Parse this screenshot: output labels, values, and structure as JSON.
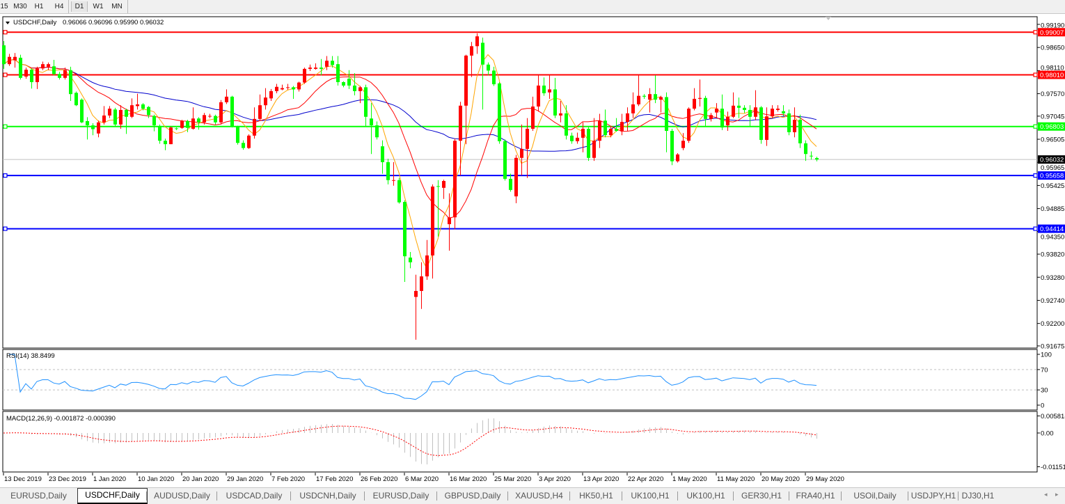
{
  "toolbar": {
    "timeframes": [
      "15",
      "M30",
      "H1",
      "H4",
      "D1",
      "W1",
      "MN"
    ],
    "active": "D1"
  },
  "chart": {
    "symbol_title": "USDCHF,Daily",
    "ohlc_text": "0.96066 0.96096 0.95990 0.96032",
    "colors": {
      "bull": "#ff0000",
      "bear": "#00ff00",
      "ma_fast": "#ffa500",
      "ma_mid": "#ff0000",
      "ma_slow": "#0000cd",
      "rsi": "#1e90ff",
      "macd_hist": "#c0c0c0",
      "macd_signal": "#ff0000"
    },
    "price_ticks": [
      "0.99190",
      "0.98650",
      "0.98110",
      "0.97570",
      "0.97045",
      "0.96505",
      "0.95965",
      "0.95425",
      "0.94885",
      "0.94350",
      "0.93820",
      "0.93280",
      "0.92740",
      "0.92200",
      "0.91675"
    ],
    "ylim": [
      0.91625,
      0.99369
    ],
    "hlines": [
      {
        "price": "0.99007",
        "color": "#ff0000"
      },
      {
        "price": "0.98010",
        "color": "#ff0000"
      },
      {
        "price": "0.96803",
        "color": "#00ff00"
      },
      {
        "price": "0.95658",
        "color": "#0000ff"
      },
      {
        "price": "0.94414",
        "color": "#0000ff"
      }
    ],
    "current_price": {
      "price": "0.96032",
      "color": "#000000"
    },
    "date_labels": [
      "13 Dec 2019",
      "23 Dec 2019",
      "1 Jan 2020",
      "10 Jan 2020",
      "20 Jan 2020",
      "29 Jan 2020",
      "7 Feb 2020",
      "17 Feb 2020",
      "26 Feb 2020",
      "6 Mar 2020",
      "16 Mar 2020",
      "25 Mar 2020",
      "3 Apr 2020",
      "13 Apr 2020",
      "22 Apr 2020",
      "1 May 2020",
      "11 May 2020",
      "20 May 2020",
      "29 May 2020"
    ]
  },
  "rsi": {
    "label": "RSI(14) 38.8499",
    "levels": [
      "100",
      "70",
      "30",
      "0"
    ]
  },
  "macd": {
    "label": "MACD(12,26,9) -0.001872 -0.000390",
    "ticks": [
      "0.005818",
      "0.00",
      "-0.01151"
    ]
  },
  "chart_data": {
    "type": "candlestick",
    "title": "USDCHF,Daily",
    "ohlc": [
      [
        0.987,
        0.988,
        0.9815,
        0.9826
      ],
      [
        0.9826,
        0.985,
        0.9822,
        0.9843
      ],
      [
        0.9835,
        0.9852,
        0.9818,
        0.9843
      ],
      [
        0.9841,
        0.9848,
        0.979,
        0.9794
      ],
      [
        0.9797,
        0.9818,
        0.9792,
        0.9813
      ],
      [
        0.9813,
        0.9816,
        0.9769,
        0.9784
      ],
      [
        0.9784,
        0.982,
        0.9768,
        0.9816
      ],
      [
        0.9816,
        0.9832,
        0.9812,
        0.9826
      ],
      [
        0.982,
        0.983,
        0.9812,
        0.9826
      ],
      [
        0.9821,
        0.9836,
        0.98,
        0.9803
      ],
      [
        0.9803,
        0.9808,
        0.979,
        0.9794
      ],
      [
        0.9794,
        0.9818,
        0.979,
        0.9812
      ],
      [
        0.9812,
        0.982,
        0.974,
        0.9756
      ],
      [
        0.9759,
        0.9762,
        0.9728,
        0.973
      ],
      [
        0.9743,
        0.9746,
        0.9688,
        0.969
      ],
      [
        0.9693,
        0.9702,
        0.965,
        0.9683
      ],
      [
        0.9683,
        0.9688,
        0.966,
        0.9674
      ],
      [
        0.9664,
        0.9694,
        0.9655,
        0.969
      ],
      [
        0.969,
        0.9728,
        0.9685,
        0.9706
      ],
      [
        0.9706,
        0.9728,
        0.97,
        0.9722
      ],
      [
        0.972,
        0.9724,
        0.968,
        0.9685
      ],
      [
        0.9685,
        0.973,
        0.9675,
        0.9719
      ],
      [
        0.9719,
        0.9722,
        0.9663,
        0.9703
      ],
      [
        0.9703,
        0.9746,
        0.97,
        0.973
      ],
      [
        0.9728,
        0.9757,
        0.972,
        0.9732
      ],
      [
        0.9732,
        0.9735,
        0.9718,
        0.9722
      ],
      [
        0.9726,
        0.9728,
        0.97,
        0.9707
      ],
      [
        0.9705,
        0.9708,
        0.9669,
        0.9683
      ],
      [
        0.9681,
        0.9685,
        0.964,
        0.9647
      ],
      [
        0.9647,
        0.9652,
        0.9625,
        0.9639
      ],
      [
        0.9639,
        0.968,
        0.9639,
        0.9678
      ],
      [
        0.9676,
        0.9678,
        0.9672,
        0.9675
      ],
      [
        0.9677,
        0.9696,
        0.9675,
        0.9693
      ],
      [
        0.9693,
        0.9696,
        0.9667,
        0.9677
      ],
      [
        0.9675,
        0.9725,
        0.9673,
        0.9699
      ],
      [
        0.9699,
        0.9702,
        0.9673,
        0.969
      ],
      [
        0.969,
        0.9712,
        0.9685,
        0.9707
      ],
      [
        0.9705,
        0.971,
        0.97,
        0.9705
      ],
      [
        0.9705,
        0.9708,
        0.9685,
        0.969
      ],
      [
        0.969,
        0.9742,
        0.9685,
        0.9737
      ],
      [
        0.9737,
        0.9767,
        0.9733,
        0.975
      ],
      [
        0.975,
        0.9752,
        0.9678,
        0.968
      ],
      [
        0.968,
        0.9682,
        0.9638,
        0.9642
      ],
      [
        0.9642,
        0.9648,
        0.9626,
        0.963
      ],
      [
        0.963,
        0.9662,
        0.9628,
        0.9659
      ],
      [
        0.9659,
        0.9725,
        0.9652,
        0.9698
      ],
      [
        0.9698,
        0.9755,
        0.9693,
        0.973
      ],
      [
        0.973,
        0.977,
        0.972,
        0.9748
      ],
      [
        0.9746,
        0.9768,
        0.974,
        0.9763
      ],
      [
        0.9763,
        0.978,
        0.9758,
        0.9773
      ],
      [
        0.9767,
        0.9778,
        0.9765,
        0.977
      ],
      [
        0.9771,
        0.978,
        0.9766,
        0.9772
      ],
      [
        0.9772,
        0.9775,
        0.9745,
        0.9767
      ],
      [
        0.9767,
        0.9785,
        0.9762,
        0.9783
      ],
      [
        0.9783,
        0.9818,
        0.978,
        0.9815
      ],
      [
        0.9815,
        0.9825,
        0.981,
        0.9818
      ],
      [
        0.9815,
        0.9828,
        0.9813,
        0.9818
      ],
      [
        0.9818,
        0.9838,
        0.98,
        0.9815
      ],
      [
        0.982,
        0.9845,
        0.9812,
        0.9834
      ],
      [
        0.9834,
        0.9845,
        0.9818,
        0.9824
      ],
      [
        0.9826,
        0.9845,
        0.9776,
        0.9784
      ],
      [
        0.9784,
        0.9786,
        0.9772,
        0.9776
      ],
      [
        0.9792,
        0.9812,
        0.9768,
        0.9776
      ],
      [
        0.9776,
        0.9805,
        0.9753,
        0.9763
      ],
      [
        0.9763,
        0.9775,
        0.9735,
        0.9772
      ],
      [
        0.9772,
        0.9778,
        0.968,
        0.9703
      ],
      [
        0.9699,
        0.9735,
        0.9616,
        0.9683
      ],
      [
        0.9683,
        0.9692,
        0.965,
        0.9655
      ],
      [
        0.9634,
        0.9648,
        0.957,
        0.9597
      ],
      [
        0.9597,
        0.9605,
        0.9545,
        0.9555
      ],
      [
        0.9555,
        0.9597,
        0.9542,
        0.9555
      ],
      [
        0.9555,
        0.956,
        0.95,
        0.9503
      ],
      [
        0.9504,
        0.9508,
        0.9317,
        0.9377
      ],
      [
        0.9374,
        0.9387,
        0.9349,
        0.9363
      ],
      [
        0.9282,
        0.9334,
        0.9182,
        0.9296
      ],
      [
        0.9296,
        0.9363,
        0.9254,
        0.933
      ],
      [
        0.933,
        0.9415,
        0.9322,
        0.9379
      ],
      [
        0.9379,
        0.9545,
        0.9325,
        0.954
      ],
      [
        0.9541,
        0.9555,
        0.9423,
        0.954
      ],
      [
        0.9537,
        0.9556,
        0.9511,
        0.9553
      ],
      [
        0.9452,
        0.9524,
        0.939,
        0.9468
      ],
      [
        0.9468,
        0.9652,
        0.944,
        0.9647
      ],
      [
        0.9647,
        0.9738,
        0.9566,
        0.9729
      ],
      [
        0.9729,
        0.9848,
        0.9639,
        0.9846
      ],
      [
        0.9846,
        0.9878,
        0.9796,
        0.9868
      ],
      [
        0.9868,
        0.9898,
        0.985,
        0.9891
      ],
      [
        0.9876,
        0.9888,
        0.972,
        0.9825
      ],
      [
        0.9825,
        0.983,
        0.98,
        0.9811
      ],
      [
        0.9811,
        0.982,
        0.9775,
        0.9779
      ],
      [
        0.9781,
        0.9784,
        0.964,
        0.9646
      ],
      [
        0.9646,
        0.965,
        0.9554,
        0.9558
      ],
      [
        0.9558,
        0.957,
        0.9528,
        0.9532
      ],
      [
        0.9517,
        0.9614,
        0.9501,
        0.9607
      ],
      [
        0.9607,
        0.9685,
        0.9566,
        0.9628
      ],
      [
        0.9628,
        0.97,
        0.956,
        0.9675
      ],
      [
        0.9675,
        0.975,
        0.967,
        0.9727
      ],
      [
        0.9727,
        0.98,
        0.9715,
        0.9776
      ],
      [
        0.9776,
        0.9795,
        0.9752,
        0.9758
      ],
      [
        0.976,
        0.98,
        0.9745,
        0.9767
      ],
      [
        0.9767,
        0.9794,
        0.97,
        0.9706
      ],
      [
        0.9706,
        0.974,
        0.969,
        0.9711
      ],
      [
        0.9711,
        0.973,
        0.965,
        0.9659
      ],
      [
        0.9659,
        0.9666,
        0.964,
        0.9646
      ],
      [
        0.9646,
        0.9666,
        0.964,
        0.9654
      ],
      [
        0.9654,
        0.969,
        0.962,
        0.9675
      ],
      [
        0.9675,
        0.968,
        0.96,
        0.9607
      ],
      [
        0.9607,
        0.97,
        0.96,
        0.9647
      ],
      [
        0.9647,
        0.971,
        0.963,
        0.9694
      ],
      [
        0.9694,
        0.972,
        0.9655,
        0.966
      ],
      [
        0.966,
        0.968,
        0.9655,
        0.9675
      ],
      [
        0.9675,
        0.97,
        0.9668,
        0.967
      ],
      [
        0.967,
        0.971,
        0.966,
        0.9691
      ],
      [
        0.9691,
        0.9725,
        0.967,
        0.9711
      ],
      [
        0.9711,
        0.976,
        0.97,
        0.9732
      ],
      [
        0.9732,
        0.98,
        0.9728,
        0.9752
      ],
      [
        0.9752,
        0.9756,
        0.9745,
        0.975
      ],
      [
        0.9743,
        0.977,
        0.9713,
        0.9756
      ],
      [
        0.9756,
        0.98,
        0.9735,
        0.9743
      ],
      [
        0.9743,
        0.9752,
        0.9713,
        0.9749
      ],
      [
        0.9749,
        0.976,
        0.962,
        0.967
      ],
      [
        0.967,
        0.9675,
        0.959,
        0.9599
      ],
      [
        0.9599,
        0.9618,
        0.9596,
        0.9615
      ],
      [
        0.963,
        0.9665,
        0.9625,
        0.9647
      ],
      [
        0.9647,
        0.9725,
        0.9642,
        0.9722
      ],
      [
        0.9722,
        0.977,
        0.9718,
        0.9745
      ],
      [
        0.9745,
        0.979,
        0.9727,
        0.9747
      ],
      [
        0.9747,
        0.9752,
        0.968,
        0.9698
      ],
      [
        0.9698,
        0.9712,
        0.9692,
        0.9707
      ],
      [
        0.9713,
        0.9735,
        0.97,
        0.9722
      ],
      [
        0.9722,
        0.9755,
        0.9672,
        0.9678
      ],
      [
        0.9683,
        0.9715,
        0.967,
        0.9703
      ],
      [
        0.9703,
        0.976,
        0.97,
        0.9729
      ],
      [
        0.9729,
        0.9748,
        0.97,
        0.9724
      ],
      [
        0.9724,
        0.973,
        0.9712,
        0.9719
      ],
      [
        0.9719,
        0.973,
        0.968,
        0.9703
      ],
      [
        0.9703,
        0.9765,
        0.9695,
        0.9725
      ],
      [
        0.9725,
        0.9728,
        0.964,
        0.9649
      ],
      [
        0.9649,
        0.9725,
        0.9635,
        0.9704
      ],
      [
        0.9704,
        0.973,
        0.97,
        0.9722
      ],
      [
        0.9719,
        0.973,
        0.9715,
        0.9722
      ],
      [
        0.9716,
        0.973,
        0.9705,
        0.9711
      ],
      [
        0.9711,
        0.972,
        0.966,
        0.9667
      ],
      [
        0.9667,
        0.9725,
        0.9655,
        0.9696
      ],
      [
        0.9696,
        0.9708,
        0.963,
        0.9641
      ],
      [
        0.9641,
        0.9648,
        0.96,
        0.9616
      ],
      [
        0.9612,
        0.9622,
        0.9603,
        0.9611
      ],
      [
        0.96066,
        0.96096,
        0.9599,
        0.96032
      ]
    ]
  },
  "tabs": {
    "items": [
      "EURUSD,Daily",
      "USDCHF,Daily",
      "AUDUSD,Daily",
      "USDCAD,Daily",
      "USDCNH,Daily",
      "EURUSD,Daily",
      "GBPUSD,Daily",
      "XAUUSD,H4",
      "HK50,H1",
      "UK100,H1",
      "UK100,H1",
      "GER30,H1",
      "FRA40,H1",
      "USOil,Daily",
      "USDJPY,H1",
      "DJ30,H1"
    ],
    "active_index": 1,
    "scroll_left": "◂",
    "scroll_right": "▸"
  }
}
